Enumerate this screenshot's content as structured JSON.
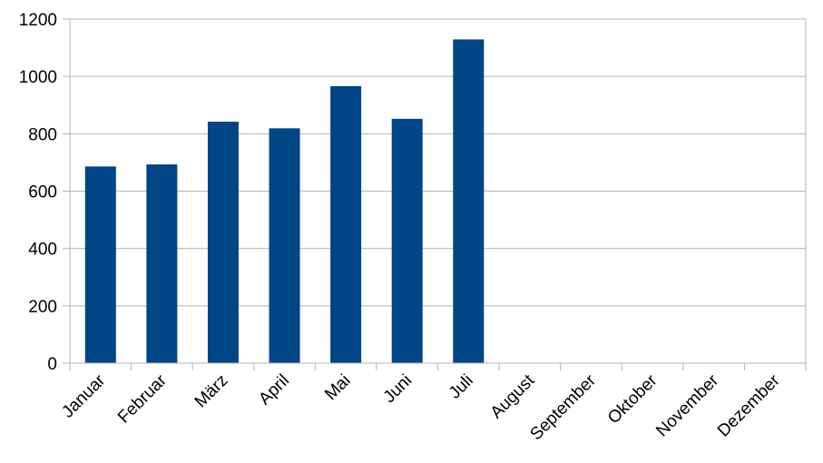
{
  "colors": {
    "bar": "#004586",
    "grid": "#b3b3b3",
    "background": "#ffffff",
    "text": "#000000"
  },
  "chart_data": {
    "type": "bar",
    "categories": [
      "Januar",
      "Februar",
      "März",
      "April",
      "Mai",
      "Juni",
      "Juli",
      "August",
      "September",
      "Oktober",
      "November",
      "Dezember"
    ],
    "values": [
      686,
      693,
      842,
      819,
      966,
      852,
      1129,
      null,
      null,
      null,
      null,
      null
    ],
    "title": "",
    "xlabel": "",
    "ylabel": "",
    "ylim": [
      0,
      1200
    ],
    "yticks": [
      "0",
      "200",
      "400",
      "600",
      "800",
      "1000",
      "1200"
    ],
    "grid": "horizontal",
    "legend": "none"
  }
}
